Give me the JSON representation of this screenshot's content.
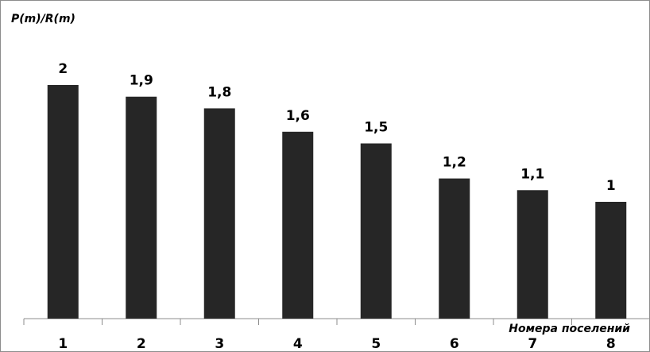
{
  "chart_data": {
    "type": "bar",
    "y_label": "P(m)/R(m)",
    "x_label": "Номера поселений",
    "categories": [
      "1",
      "2",
      "3",
      "4",
      "5",
      "6",
      "7",
      "8"
    ],
    "values": [
      2,
      1.9,
      1.8,
      1.6,
      1.5,
      1.2,
      1.1,
      1
    ],
    "value_labels": [
      "2",
      "1,9",
      "1,8",
      "1,6",
      "1,5",
      "1,2",
      "1,1",
      "1"
    ],
    "color": "#262626",
    "ylim": [
      0,
      2.5
    ]
  }
}
